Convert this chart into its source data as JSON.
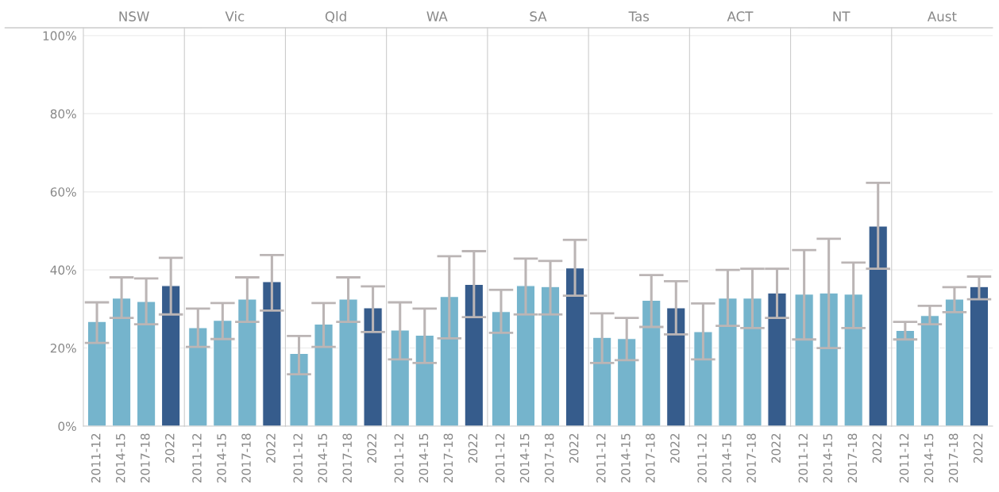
{
  "chart_data": [
    {
      "type": "bar",
      "title": "NSW",
      "categories": [
        "2011-12",
        "2014-15",
        "2017-18",
        "2022"
      ],
      "values": [
        26.8,
        32.8,
        31.9,
        36.0
      ],
      "errors": [
        [
          21.3,
          31.7
        ],
        [
          27.7,
          38.1
        ],
        [
          26.1,
          37.8
        ],
        [
          28.6,
          43.1
        ]
      ],
      "colors": [
        "#66bbdb",
        "#66bbdb",
        "#66bbdb",
        "#275b9b"
      ],
      "ylim": [
        0,
        102
      ],
      "yticks": [
        {
          "value": 0,
          "label": "0%"
        },
        {
          "value": 20,
          "label": "20%"
        },
        {
          "value": 40,
          "label": "40%"
        },
        {
          "value": 60,
          "label": "60%"
        },
        {
          "value": 80,
          "label": "80%"
        },
        {
          "value": 100,
          "label": "100%"
        }
      ],
      "grid": "y"
    },
    {
      "type": "bar",
      "title": "Vic",
      "categories": [
        "2011-12",
        "2014-15",
        "2017-18",
        "2022"
      ],
      "values": [
        25.2,
        27.1,
        32.5,
        37.0
      ],
      "errors": [
        [
          20.3,
          30.1
        ],
        [
          22.3,
          31.5
        ],
        [
          26.7,
          38.1
        ],
        [
          29.6,
          43.8
        ]
      ],
      "colors": [
        "#66bbdb",
        "#66bbdb",
        "#66bbdb",
        "#275b9b"
      ],
      "ylim": [
        0,
        102
      ],
      "grid": "y",
      "tick_labels": "x"
    },
    {
      "type": "bar",
      "title": "Qld",
      "categories": [
        "2011-12",
        "2014-15",
        "2017-18",
        "2022"
      ],
      "values": [
        18.6,
        26.1,
        32.5,
        30.3
      ],
      "errors": [
        [
          13.3,
          23.1
        ],
        [
          20.3,
          31.5
        ],
        [
          26.7,
          38.1
        ],
        [
          24.1,
          35.8
        ]
      ],
      "colors": [
        "#66bbdb",
        "#66bbdb",
        "#66bbdb",
        "#275b9b"
      ],
      "ylim": [
        0,
        102
      ],
      "grid": "y",
      "tick_labels": "x"
    },
    {
      "type": "bar",
      "title": "WA",
      "categories": [
        "2011-12",
        "2014-15",
        "2017-18",
        "2022"
      ],
      "values": [
        24.6,
        23.3,
        33.2,
        36.3
      ],
      "errors": [
        [
          17.1,
          31.7
        ],
        [
          16.2,
          30.1
        ],
        [
          22.5,
          43.5
        ],
        [
          27.9,
          44.8
        ]
      ],
      "colors": [
        "#66bbdb",
        "#66bbdb",
        "#66bbdb",
        "#275b9b"
      ],
      "ylim": [
        0,
        102
      ],
      "grid": "y",
      "tick_labels": "x"
    },
    {
      "type": "bar",
      "title": "SA",
      "categories": [
        "2011-12",
        "2014-15",
        "2017-18",
        "2022"
      ],
      "values": [
        29.3,
        36.0,
        35.7,
        40.5
      ],
      "errors": [
        [
          23.9,
          34.9
        ],
        [
          28.6,
          42.9
        ],
        [
          28.6,
          42.3
        ],
        [
          33.4,
          47.7
        ]
      ],
      "colors": [
        "#66bbdb",
        "#66bbdb",
        "#66bbdb",
        "#275b9b"
      ],
      "ylim": [
        0,
        102
      ],
      "grid": "y",
      "tick_labels": "x"
    },
    {
      "type": "bar",
      "title": "Tas",
      "categories": [
        "2011-12",
        "2014-15",
        "2017-18",
        "2022"
      ],
      "values": [
        22.7,
        22.4,
        32.2,
        30.3
      ],
      "errors": [
        [
          16.2,
          28.9
        ],
        [
          16.9,
          27.7
        ],
        [
          25.4,
          38.7
        ],
        [
          23.5,
          37.1
        ]
      ],
      "colors": [
        "#66bbdb",
        "#66bbdb",
        "#66bbdb",
        "#275b9b"
      ],
      "ylim": [
        0,
        102
      ],
      "grid": "y",
      "tick_labels": "x"
    },
    {
      "type": "bar",
      "title": "ACT",
      "categories": [
        "2011-12",
        "2014-15",
        "2017-18",
        "2022"
      ],
      "values": [
        24.2,
        32.8,
        32.8,
        34.1
      ],
      "errors": [
        [
          17.1,
          31.4
        ],
        [
          25.7,
          40.0
        ],
        [
          25.1,
          40.3
        ],
        [
          27.7,
          40.3
        ]
      ],
      "colors": [
        "#66bbdb",
        "#66bbdb",
        "#66bbdb",
        "#275b9b"
      ],
      "ylim": [
        0,
        102
      ],
      "grid": "y",
      "tick_labels": "x"
    },
    {
      "type": "bar",
      "title": "NT",
      "categories": [
        "2011-12",
        "2014-15",
        "2017-18",
        "2022"
      ],
      "values": [
        33.8,
        34.1,
        33.8,
        51.2
      ],
      "errors": [
        [
          22.2,
          45.1
        ],
        [
          20.0,
          48.0
        ],
        [
          25.1,
          41.9
        ],
        [
          40.3,
          62.3
        ]
      ],
      "colors": [
        "#66bbdb",
        "#66bbdb",
        "#66bbdb",
        "#275b9b"
      ],
      "ylim": [
        0,
        102
      ],
      "grid": "y",
      "tick_labels": "x"
    },
    {
      "type": "bar",
      "title": "Aust",
      "categories": [
        "2011-12",
        "2014-15",
        "2017-18",
        "2022"
      ],
      "values": [
        24.5,
        28.3,
        32.5,
        35.7
      ],
      "errors": [
        [
          22.2,
          26.7
        ],
        [
          26.1,
          30.8
        ],
        [
          29.2,
          35.6
        ],
        [
          32.5,
          38.3
        ]
      ],
      "colors": [
        "#66bbdb",
        "#66bbdb",
        "#66bbdb",
        "#275b9b"
      ],
      "ylim": [
        0,
        102
      ],
      "grid": "y",
      "tick_labels": "x"
    }
  ]
}
